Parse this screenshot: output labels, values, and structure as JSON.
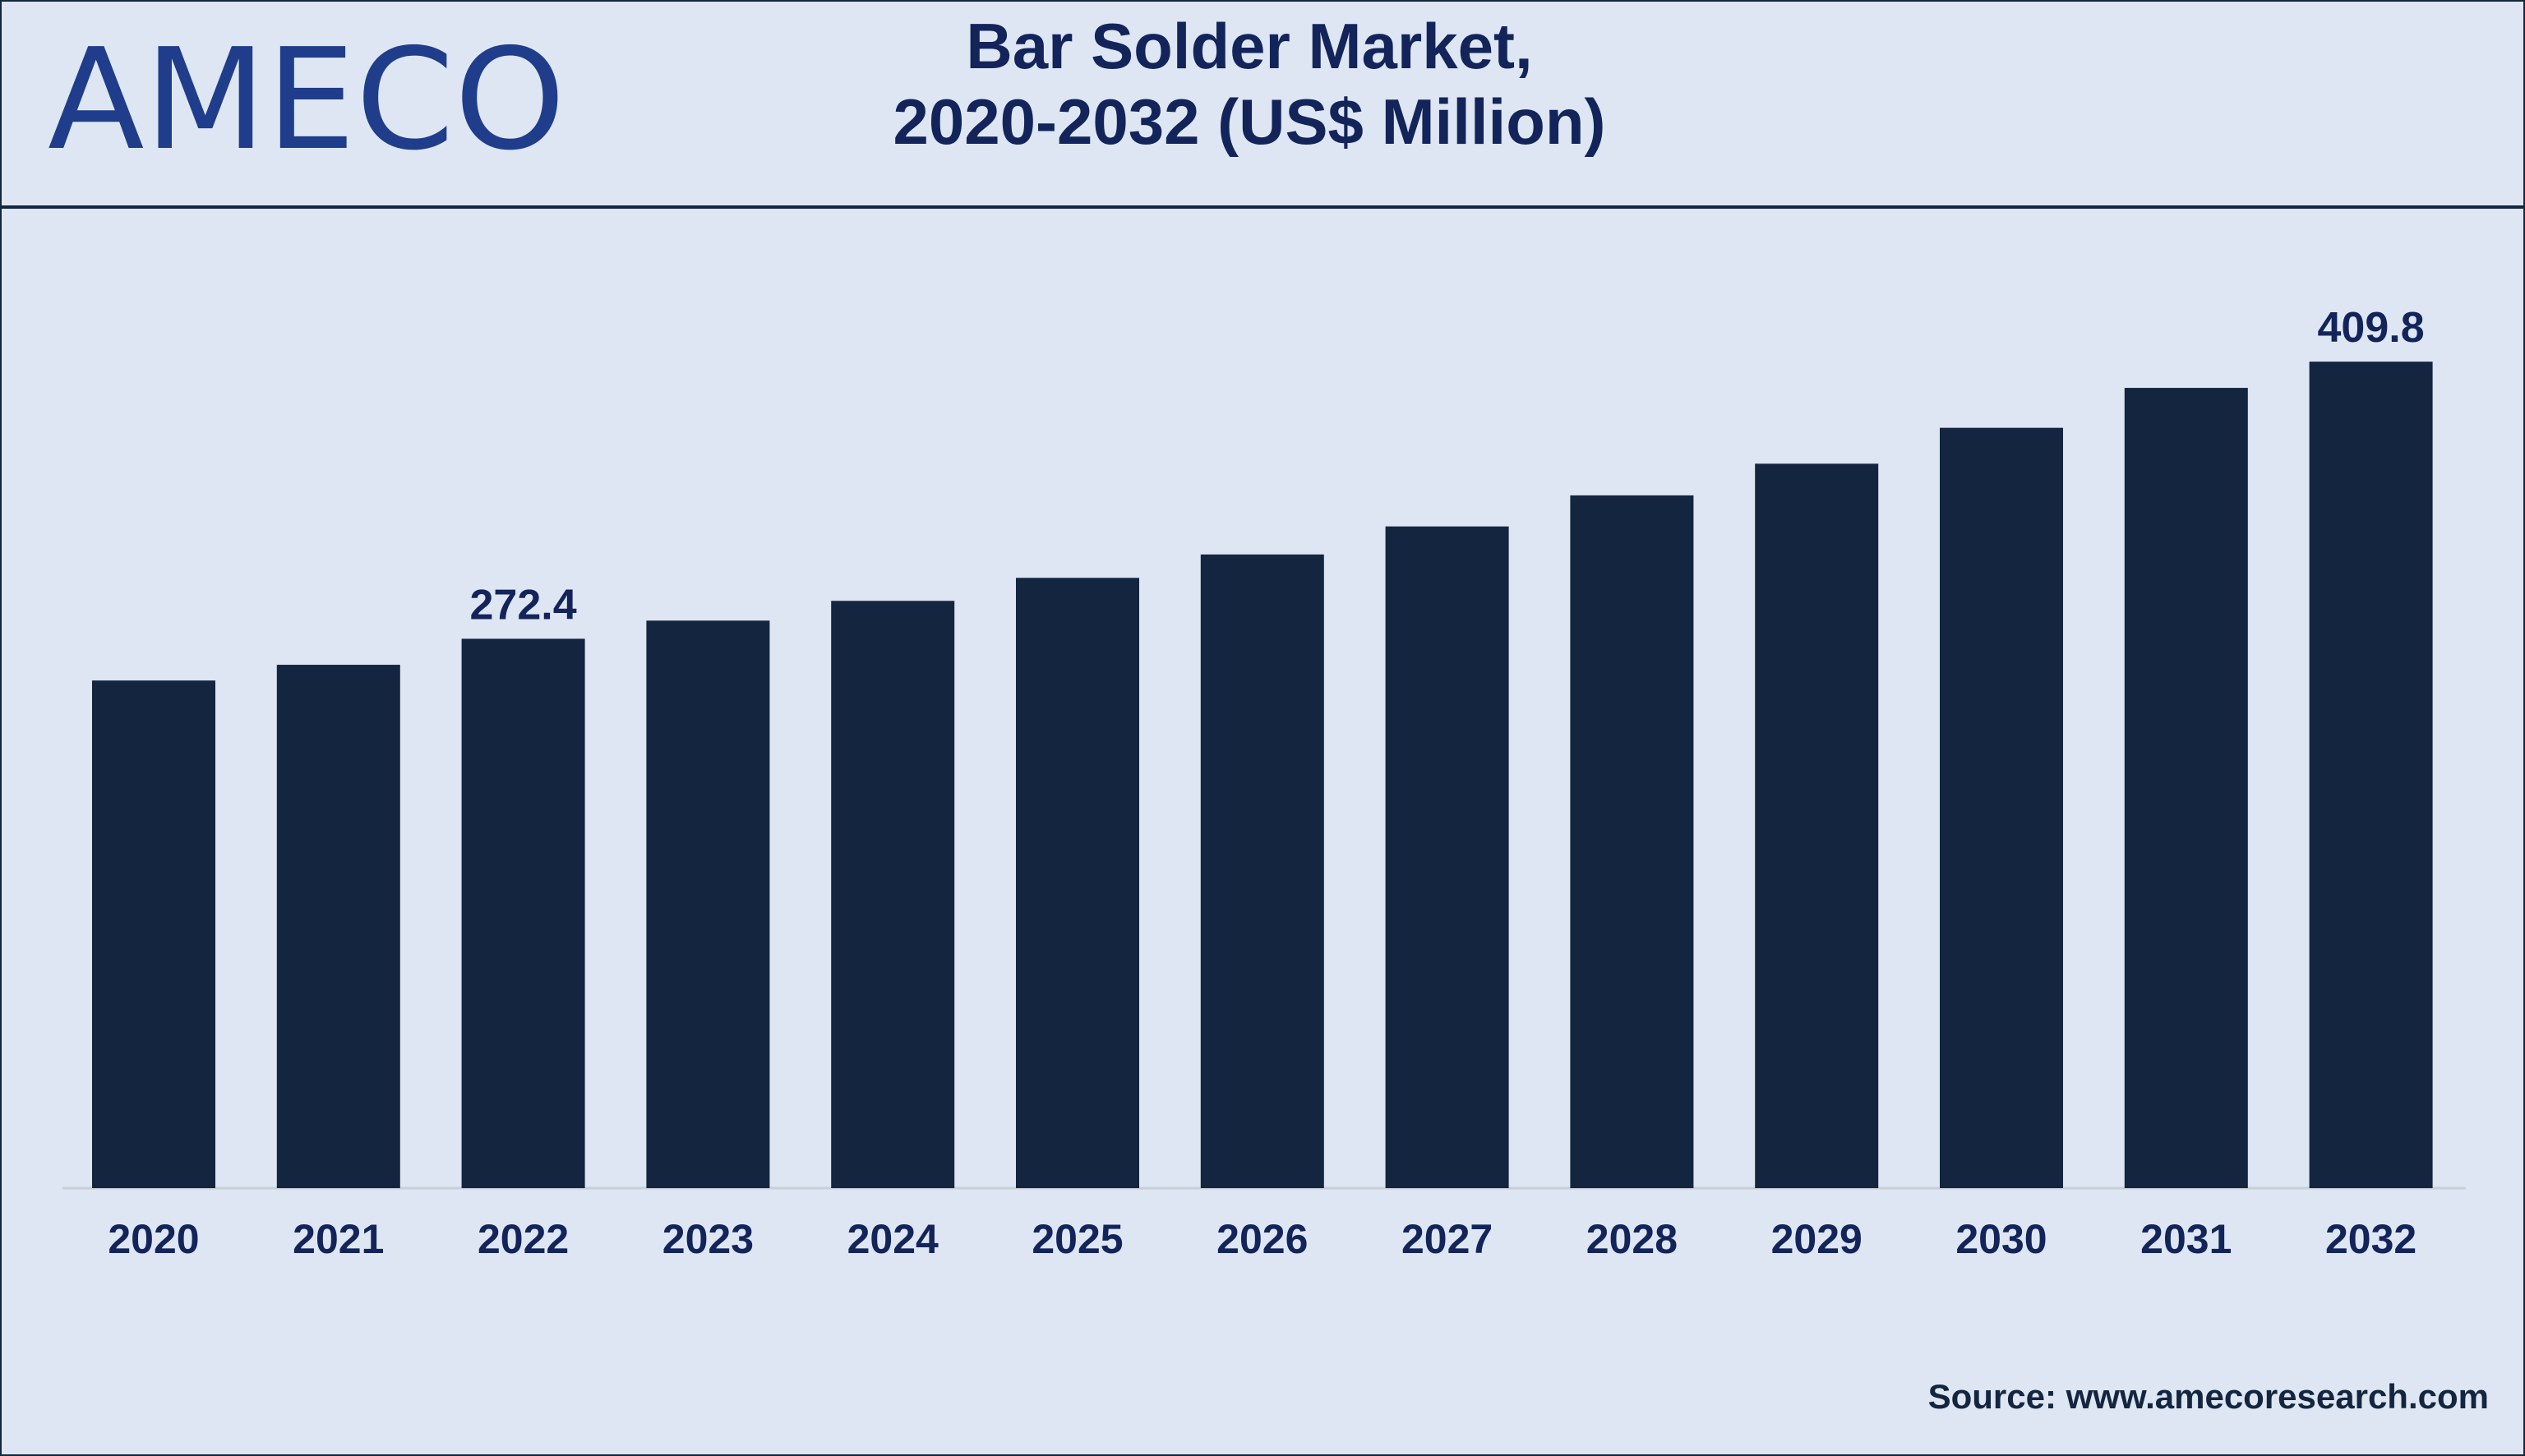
{
  "brand": {
    "logo_text": "AMECO"
  },
  "title_line1": "Bar Solder Market,",
  "title_line2": "2020-2032 (US$ Million)",
  "source": "Source: www.amecoresearch.com",
  "colors": {
    "bar": "#13253f",
    "background": "#dde6f2",
    "title": "#13245a",
    "logo": "#1f3d8a"
  },
  "chart_data": {
    "type": "bar",
    "categories": [
      "2020",
      "2021",
      "2022",
      "2023",
      "2024",
      "2025",
      "2026",
      "2027",
      "2028",
      "2029",
      "2030",
      "2031",
      "2032"
    ],
    "values": [
      251.7,
      259.5,
      272.4,
      281.4,
      291.2,
      302.6,
      314.2,
      328.1,
      343.5,
      359.2,
      377.0,
      396.8,
      409.8
    ],
    "data_labels": [
      {
        "index": 2,
        "text": "272.4"
      },
      {
        "index": 12,
        "text": "409.8"
      }
    ],
    "title": "Bar Solder Market, 2020-2032 (US$ Million)",
    "xlabel": "",
    "ylabel": "",
    "ylim": [
      0,
      450
    ],
    "grid": false,
    "legend": "none"
  }
}
